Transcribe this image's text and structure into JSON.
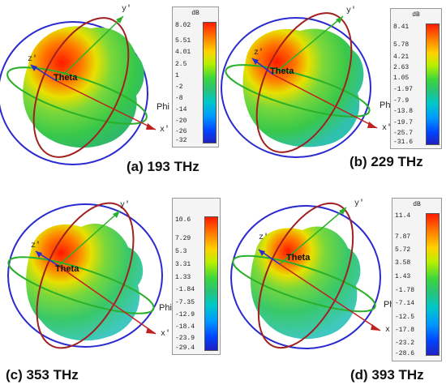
{
  "panels": [
    {
      "caption": "(a) 193 THz",
      "colorbar": {
        "unit": "dB",
        "ticks": [
          "8.02",
          "5.51",
          "4.01",
          "2.5",
          "1",
          "-2",
          "-8",
          "-14",
          "-20",
          "-26",
          "-32"
        ]
      },
      "axes": {
        "x": "x'",
        "y": "y'",
        "z": "z'",
        "theta": "Theta",
        "phi": "Phi"
      }
    },
    {
      "caption": "(b) 229 THz",
      "colorbar": {
        "unit": "dB",
        "ticks": [
          "8.41",
          "5.78",
          "4.21",
          "2.63",
          "1.05",
          "-1.97",
          "-7.9",
          "-13.8",
          "-19.7",
          "-25.7",
          "-31.6"
        ]
      },
      "axes": {
        "x": "x'",
        "y": "y'",
        "z": "z'",
        "theta": "Theta",
        "phi": "Phi"
      }
    },
    {
      "caption": "(c) 353 THz",
      "colorbar": {
        "unit": "dB",
        "ticks": [
          "10.6",
          "7.29",
          "5.3",
          "3.31",
          "1.33",
          "-1.84",
          "-7.35",
          "-12.9",
          "-18.4",
          "-23.9",
          "-29.4"
        ]
      },
      "axes": {
        "x": "x'",
        "y": "y'",
        "z": "z'",
        "theta": "Theta",
        "phi": "Phi"
      }
    },
    {
      "caption": "(d) 393 THz",
      "colorbar": {
        "unit": "dB",
        "ticks": [
          "11.4",
          "7.87",
          "5.72",
          "3.58",
          "1.43",
          "-1.78",
          "-7.14",
          "-12.5",
          "-17.8",
          "-23.2",
          "-28.6"
        ]
      },
      "axes": {
        "x": "x'",
        "y": "y'",
        "z": "z'",
        "theta": "Theta",
        "phi": "Phi"
      }
    }
  ],
  "colors": {
    "max_lobe": "#ff2a00",
    "body": "#3ccf4e",
    "low": "#33cccc",
    "ring_blue": "#2a2ad0",
    "ring_red": "#a02020",
    "ring_green": "#2ab02a"
  }
}
